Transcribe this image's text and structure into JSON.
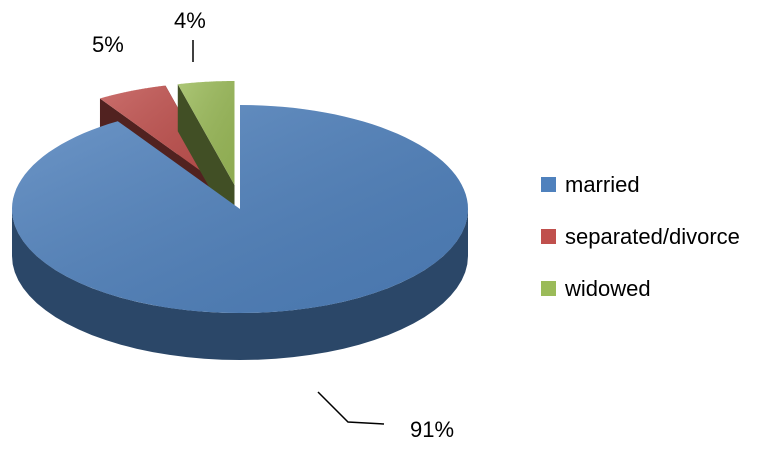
{
  "chart_data": {
    "type": "pie",
    "title": "",
    "categories": [
      "married",
      "separated/divorce",
      "widowed"
    ],
    "values": [
      91,
      5,
      4
    ],
    "labels": [
      "91%",
      "5%",
      "4%"
    ],
    "colors": [
      "#4F81BD",
      "#C0504D",
      "#9BBB59"
    ],
    "style": "3d-exploded",
    "legend_position": "right"
  }
}
